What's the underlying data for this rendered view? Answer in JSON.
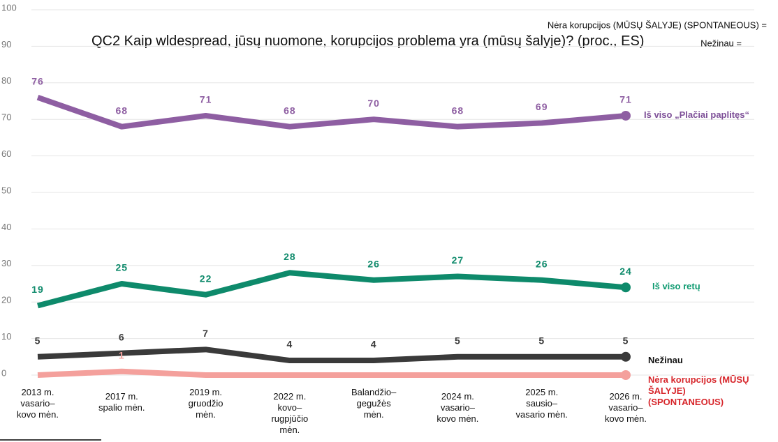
{
  "chart_data": {
    "type": "line",
    "title": "QC2 Kaip wldespread, jūsų nuomone, korupcijos problema yra (mūsų šalyje)? (proc., ES)",
    "annotations": [
      "Nėra korupcijos (MŪSŲ ŠALYJE) (SPONTANEOUS) =",
      "Nežinau ="
    ],
    "categories": [
      "2013 m. vasario–kovo mėn.",
      "2017 m. spalio mėn.",
      "2019 m. gruodžio mėn.",
      "2022 m. kovo–rugpjūčio mėn.",
      "Balandžio–gegužės mėn.",
      "2024 m. vasario–kovo mėn.",
      "2025 m. sausio–vasario mėn.",
      "2026 m. vasario–kovo mėn."
    ],
    "series": [
      {
        "name": "Iš viso „Plačiai paplitęs“",
        "color": "#8e5ea2",
        "legend_color": "#7d4f97",
        "values": [
          76,
          68,
          71,
          68,
          70,
          68,
          69,
          71
        ]
      },
      {
        "name": "Iš viso retų",
        "color": "#0e8a6b",
        "legend_color": "#0e9a70",
        "values": [
          19,
          25,
          22,
          28,
          26,
          27,
          26,
          24
        ]
      },
      {
        "name": "Nežinau",
        "color": "#3a3a3a",
        "legend_color": "#111111",
        "values": [
          5,
          6,
          7,
          4,
          4,
          5,
          5,
          5
        ]
      },
      {
        "name": "Nėra korupcijos (MŪSŲ ŠALYJE) (SPONTANEOUS)",
        "color": "#f4a09c",
        "legend_color": "#d7262b",
        "values": [
          0,
          1,
          0,
          0,
          0,
          0,
          0,
          0
        ],
        "value_labels": [
          null,
          "1",
          null,
          null,
          null,
          null,
          null,
          null
        ]
      }
    ],
    "ylim": [
      0,
      100
    ],
    "yticks": [
      0,
      10,
      20,
      30,
      40,
      50,
      60,
      70,
      80,
      90,
      100
    ],
    "grid": true
  }
}
